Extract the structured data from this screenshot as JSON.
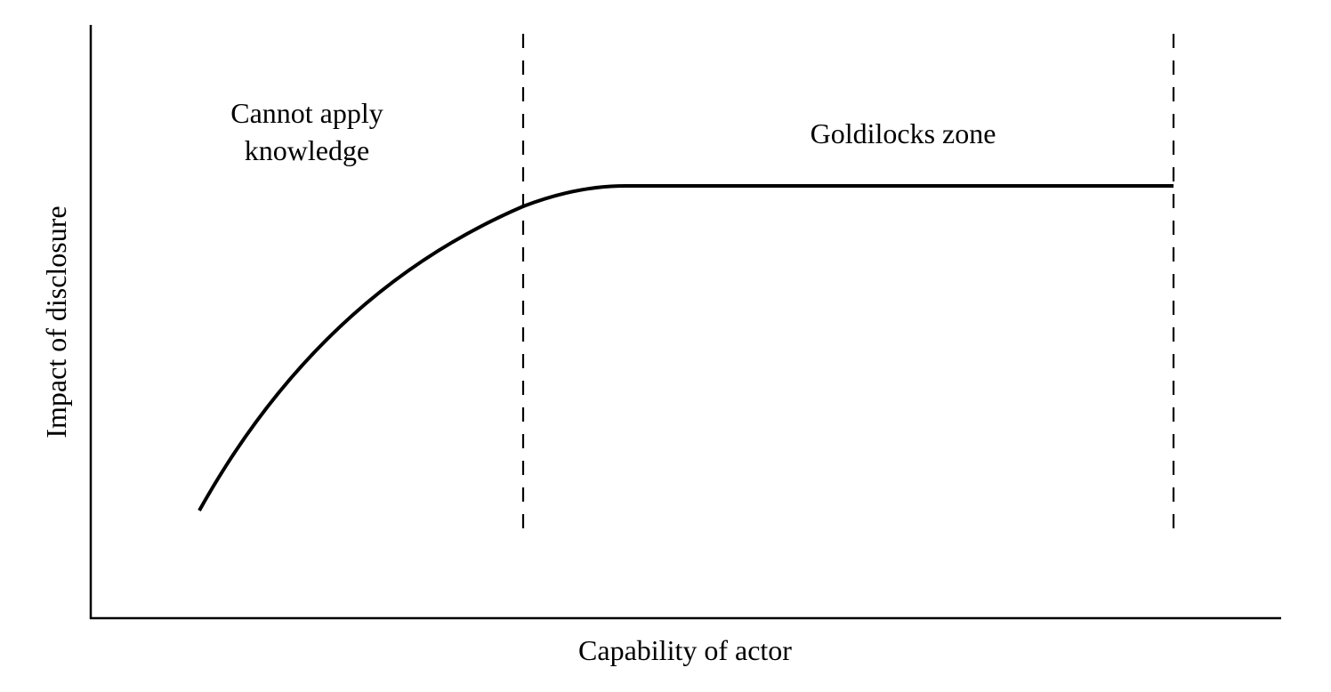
{
  "diagram": {
    "x_axis_label": "Capability of actor",
    "y_axis_label": "Impact of disclosure",
    "regions": [
      {
        "label_lines": [
          "Cannot apply",
          "knowledge"
        ]
      },
      {
        "label_lines": [
          "Goldilocks zone"
        ]
      }
    ],
    "colors": {
      "line": "#000000",
      "background": "#ffffff"
    }
  }
}
